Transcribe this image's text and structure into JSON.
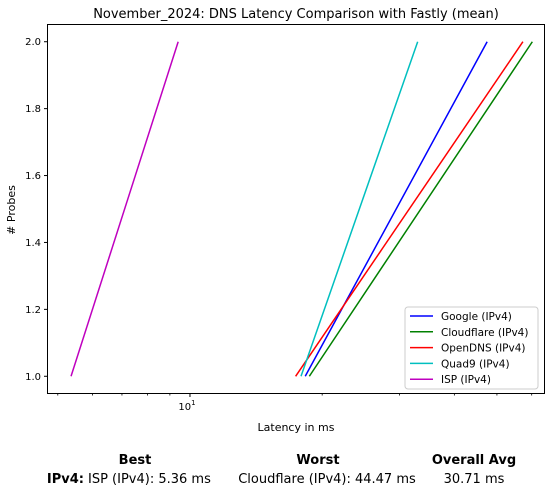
{
  "chart_data": {
    "type": "line",
    "title": "November_2024: DNS Latency Comparison with Fastly (mean)",
    "xlabel": "Latency in ms",
    "ylabel": "# Probes",
    "x_scale": "log",
    "xlim": [
      4.75,
      64
    ],
    "ylim": [
      0.95,
      2.05
    ],
    "x_ticks": [
      {
        "value": 10,
        "label": "10^1"
      }
    ],
    "y_ticks": [
      1.0,
      1.2,
      1.4,
      1.6,
      1.8,
      2.0
    ],
    "y_tick_labels": [
      "1.0",
      "1.2",
      "1.4",
      "1.6",
      "1.8",
      "2.0"
    ],
    "grid": false,
    "legend_position": "lower right",
    "series": [
      {
        "name": "Google (IPv4)",
        "color": "#0000ff",
        "x": [
          18.3,
          47.5
        ],
        "y": [
          1.0,
          2.0
        ]
      },
      {
        "name": "Cloudflare (IPv4)",
        "color": "#008000",
        "x": [
          18.7,
          60.2
        ],
        "y": [
          1.0,
          2.0
        ]
      },
      {
        "name": "OpenDNS (IPv4)",
        "color": "#ff0000",
        "x": [
          17.4,
          57.3
        ],
        "y": [
          1.0,
          2.0
        ]
      },
      {
        "name": "Quad9 (IPv4)",
        "color": "#00bfbf",
        "x": [
          17.9,
          33.0
        ],
        "y": [
          1.0,
          2.0
        ]
      },
      {
        "name": "ISP (IPv4)",
        "color": "#bf00bf",
        "x": [
          5.36,
          9.4
        ],
        "y": [
          1.0,
          2.0
        ]
      }
    ]
  },
  "summary": {
    "headers": {
      "best": "Best",
      "worst": "Worst",
      "avg": "Overall Avg"
    },
    "rows": [
      {
        "label": "IPv4:",
        "best": "ISP (IPv4): 5.36 ms",
        "worst": "Cloudflare (IPv4): 44.47 ms",
        "avg": "30.71 ms"
      }
    ]
  }
}
